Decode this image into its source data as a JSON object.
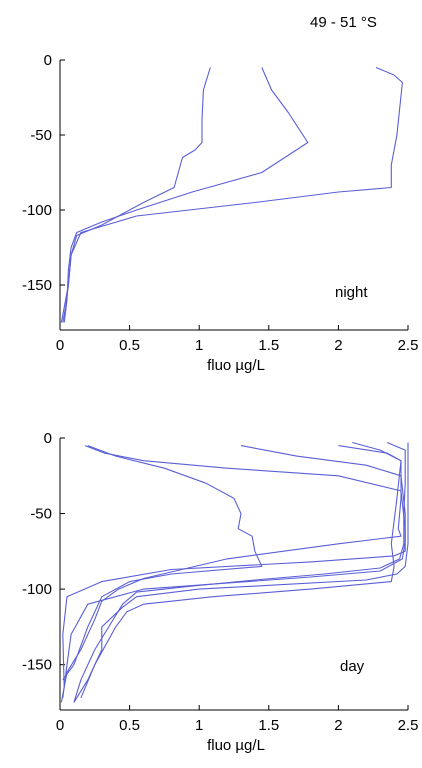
{
  "figure": {
    "region_label": "49 - 51 °S"
  },
  "colors": {
    "series": "#5a5fd6",
    "axis": "#000000"
  },
  "chart_data": [
    {
      "type": "line",
      "annotation": "night",
      "xlabel": "fluo µg/L",
      "ylabel": "",
      "xlim": [
        0,
        2.5
      ],
      "ylim": [
        -180,
        0
      ],
      "xticks": [
        0,
        0.5,
        1,
        1.5,
        2,
        2.5
      ],
      "yticks": [
        0,
        -50,
        -100,
        -150
      ],
      "grid": false,
      "series": [
        {
          "points": [
            [
              1.08,
              -5
            ],
            [
              1.03,
              -20
            ],
            [
              1.02,
              -40
            ],
            [
              1.02,
              -55
            ],
            [
              0.97,
              -60
            ],
            [
              0.88,
              -65
            ],
            [
              0.82,
              -85
            ],
            [
              0.6,
              -95
            ],
            [
              0.3,
              -110
            ],
            [
              0.12,
              -117
            ],
            [
              0.08,
              -130
            ],
            [
              0.06,
              -150
            ],
            [
              0.03,
              -165
            ],
            [
              0.01,
              -175
            ]
          ]
        },
        {
          "points": [
            [
              1.45,
              -5
            ],
            [
              1.52,
              -20
            ],
            [
              1.64,
              -35
            ],
            [
              1.78,
              -55
            ],
            [
              1.45,
              -75
            ],
            [
              0.95,
              -88
            ],
            [
              0.55,
              -100
            ],
            [
              0.3,
              -108
            ],
            [
              0.12,
              -115
            ],
            [
              0.08,
              -125
            ],
            [
              0.06,
              -140
            ],
            [
              0.05,
              -160
            ],
            [
              0.03,
              -175
            ]
          ]
        },
        {
          "points": [
            [
              2.27,
              -5
            ],
            [
              2.4,
              -10
            ],
            [
              2.46,
              -15
            ],
            [
              2.42,
              -50
            ],
            [
              2.38,
              -70
            ],
            [
              2.38,
              -85
            ],
            [
              2.0,
              -88
            ],
            [
              1.4,
              -95
            ],
            [
              0.55,
              -104
            ],
            [
              0.15,
              -115
            ],
            [
              0.08,
              -130
            ],
            [
              0.06,
              -150
            ],
            [
              0.04,
              -165
            ],
            [
              0.02,
              -175
            ]
          ]
        }
      ]
    },
    {
      "type": "line",
      "annotation": "day",
      "xlabel": "fluo µg/L",
      "ylabel": "",
      "xlim": [
        0,
        2.5
      ],
      "ylim": [
        -180,
        0
      ],
      "xticks": [
        0,
        0.5,
        1,
        1.5,
        2,
        2.5
      ],
      "yticks": [
        0,
        -50,
        -100,
        -150
      ],
      "grid": false,
      "series": [
        {
          "points": [
            [
              0.18,
              -5
            ],
            [
              0.32,
              -10
            ],
            [
              0.6,
              -15
            ],
            [
              1.2,
              -20
            ],
            [
              2.0,
              -25
            ],
            [
              2.45,
              -35
            ],
            [
              2.48,
              -60
            ],
            [
              2.48,
              -75
            ],
            [
              2.4,
              -78
            ],
            [
              1.8,
              -82
            ],
            [
              0.8,
              -87
            ],
            [
              0.3,
              -95
            ],
            [
              0.05,
              -105
            ],
            [
              0.02,
              -130
            ],
            [
              0.03,
              -165
            ]
          ]
        },
        {
          "points": [
            [
              0.2,
              -5
            ],
            [
              0.4,
              -12
            ],
            [
              0.75,
              -20
            ],
            [
              1.05,
              -30
            ],
            [
              1.25,
              -40
            ],
            [
              1.3,
              -50
            ],
            [
              1.28,
              -60
            ],
            [
              1.38,
              -65
            ],
            [
              1.4,
              -75
            ],
            [
              1.45,
              -85
            ],
            [
              0.8,
              -90
            ],
            [
              0.5,
              -95
            ],
            [
              0.3,
              -105
            ],
            [
              0.2,
              -125
            ],
            [
              0.1,
              -150
            ],
            [
              0.02,
              -160
            ]
          ]
        },
        {
          "points": [
            [
              1.3,
              -5
            ],
            [
              1.7,
              -12
            ],
            [
              2.2,
              -18
            ],
            [
              2.45,
              -25
            ],
            [
              2.48,
              -50
            ],
            [
              2.48,
              -68
            ],
            [
              2.46,
              -80
            ],
            [
              2.3,
              -88
            ],
            [
              1.8,
              -92
            ],
            [
              1.2,
              -96
            ],
            [
              0.6,
              -100
            ],
            [
              0.2,
              -110
            ],
            [
              0.08,
              -130
            ],
            [
              0.05,
              -150
            ],
            [
              0.02,
              -172
            ]
          ]
        },
        {
          "points": [
            [
              2.0,
              -5
            ],
            [
              2.35,
              -10
            ],
            [
              2.45,
              -15
            ],
            [
              2.45,
              -40
            ],
            [
              2.43,
              -60
            ],
            [
              2.45,
              -65
            ],
            [
              2.0,
              -70
            ],
            [
              1.2,
              -80
            ],
            [
              0.6,
              -93
            ],
            [
              0.42,
              -100
            ],
            [
              0.3,
              -108
            ],
            [
              0.25,
              -120
            ],
            [
              0.15,
              -140
            ],
            [
              0.05,
              -155
            ],
            [
              0.01,
              -175
            ]
          ]
        },
        {
          "points": [
            [
              2.35,
              -3
            ],
            [
              2.48,
              -8
            ],
            [
              2.48,
              -30
            ],
            [
              2.47,
              -50
            ],
            [
              2.47,
              -70
            ],
            [
              2.44,
              -80
            ],
            [
              2.3,
              -86
            ],
            [
              1.9,
              -90
            ],
            [
              1.4,
              -94
            ],
            [
              0.95,
              -98
            ],
            [
              0.55,
              -102
            ],
            [
              0.45,
              -110
            ],
            [
              0.35,
              -125
            ],
            [
              0.25,
              -140
            ],
            [
              0.15,
              -160
            ],
            [
              0.1,
              -175
            ]
          ]
        },
        {
          "points": [
            [
              2.5,
              -3
            ],
            [
              2.5,
              -40
            ],
            [
              2.5,
              -70
            ],
            [
              2.48,
              -85
            ],
            [
              2.42,
              -90
            ],
            [
              2.2,
              -94
            ],
            [
              1.6,
              -97
            ],
            [
              1.0,
              -100
            ],
            [
              0.55,
              -105
            ],
            [
              0.45,
              -112
            ],
            [
              0.3,
              -125
            ],
            [
              0.3,
              -140
            ],
            [
              0.2,
              -160
            ],
            [
              0.1,
              -175
            ]
          ]
        },
        {
          "points": [
            [
              2.1,
              -3
            ],
            [
              2.3,
              -8
            ],
            [
              2.45,
              -15
            ],
            [
              2.42,
              -40
            ],
            [
              2.38,
              -70
            ],
            [
              2.4,
              -85
            ],
            [
              2.38,
              -95
            ],
            [
              1.8,
              -100
            ],
            [
              1.1,
              -105
            ],
            [
              0.6,
              -110
            ],
            [
              0.48,
              -115
            ],
            [
              0.4,
              -125
            ],
            [
              0.25,
              -150
            ],
            [
              0.15,
              -172
            ]
          ]
        }
      ]
    }
  ]
}
